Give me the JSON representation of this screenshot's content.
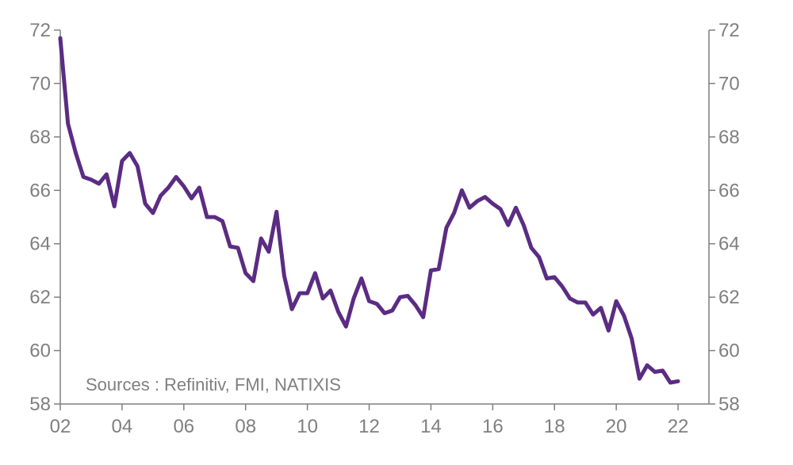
{
  "chart_data": {
    "type": "line",
    "title": "",
    "xlabel": "",
    "ylabel": "",
    "source_text": "Sources : Refinitiv, FMI, NATIXIS",
    "xlim": [
      2002,
      2023
    ],
    "ylim": [
      58,
      72
    ],
    "x_ticks": [
      2002,
      2004,
      2006,
      2008,
      2010,
      2012,
      2014,
      2016,
      2018,
      2020,
      2022
    ],
    "x_tick_labels": [
      "02",
      "04",
      "06",
      "08",
      "10",
      "12",
      "14",
      "16",
      "18",
      "20",
      "22"
    ],
    "y_ticks": [
      58,
      60,
      62,
      64,
      66,
      68,
      70,
      72
    ],
    "y_tick_labels": [
      "58",
      "60",
      "62",
      "64",
      "66",
      "68",
      "70",
      "72"
    ],
    "line_color": "#5b2c83",
    "axis_color": "#7f7f7f",
    "grid": false,
    "series": [
      {
        "name": "series",
        "x": [
          2002.0,
          2002.25,
          2002.5,
          2002.75,
          2003.0,
          2003.25,
          2003.5,
          2003.75,
          2004.0,
          2004.25,
          2004.5,
          2004.75,
          2005.0,
          2005.25,
          2005.5,
          2005.75,
          2006.0,
          2006.25,
          2006.5,
          2006.75,
          2007.0,
          2007.25,
          2007.5,
          2007.75,
          2008.0,
          2008.25,
          2008.5,
          2008.75,
          2009.0,
          2009.25,
          2009.5,
          2009.75,
          2010.0,
          2010.25,
          2010.5,
          2010.75,
          2011.0,
          2011.25,
          2011.5,
          2011.75,
          2012.0,
          2012.25,
          2012.5,
          2012.75,
          2013.0,
          2013.25,
          2013.5,
          2013.75,
          2014.0,
          2014.25,
          2014.5,
          2014.75,
          2015.0,
          2015.25,
          2015.5,
          2015.75,
          2016.0,
          2016.25,
          2016.5,
          2016.75,
          2017.0,
          2017.25,
          2017.5,
          2017.75,
          2018.0,
          2018.25,
          2018.5,
          2018.75,
          2019.0,
          2019.25,
          2019.5,
          2019.75,
          2020.0,
          2020.25,
          2020.5,
          2020.75,
          2021.0,
          2021.25,
          2021.5,
          2021.75,
          2022.0
        ],
        "values": [
          71.7,
          68.5,
          67.4,
          66.5,
          66.4,
          66.25,
          66.6,
          65.4,
          67.1,
          67.4,
          66.9,
          65.5,
          65.15,
          65.8,
          66.1,
          66.5,
          66.15,
          65.7,
          66.1,
          65.0,
          65.0,
          64.85,
          63.9,
          63.85,
          62.9,
          62.6,
          64.2,
          63.7,
          65.2,
          62.8,
          61.55,
          62.15,
          62.15,
          62.9,
          61.95,
          62.25,
          61.45,
          60.9,
          61.95,
          62.7,
          61.85,
          61.75,
          61.4,
          61.5,
          62.0,
          62.05,
          61.7,
          61.25,
          63.0,
          63.05,
          64.6,
          65.15,
          66.0,
          65.35,
          65.6,
          65.75,
          65.5,
          65.3,
          64.7,
          65.35,
          64.7,
          63.85,
          63.5,
          62.7,
          62.75,
          62.4,
          61.95,
          61.8,
          61.8,
          61.35,
          61.6,
          60.75,
          61.85,
          61.3,
          60.45,
          58.95,
          59.45,
          59.2,
          59.25,
          58.8,
          58.85
        ]
      }
    ]
  }
}
